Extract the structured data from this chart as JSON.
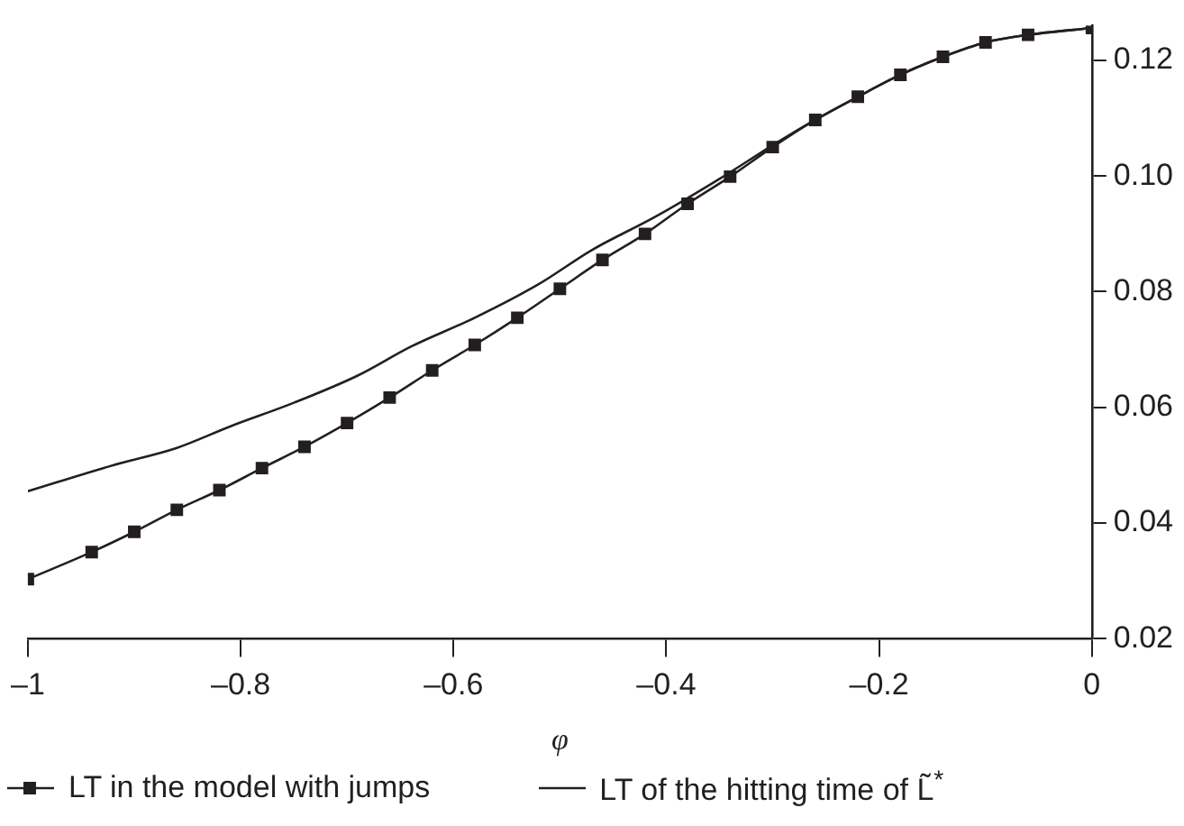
{
  "chart_data": {
    "type": "line",
    "xlabel": "φ",
    "xlim": [
      -1,
      0
    ],
    "ylim": [
      0.02,
      0.126
    ],
    "xticks": [
      {
        "value": -1,
        "label": "–1"
      },
      {
        "value": -0.8,
        "label": "–0.8"
      },
      {
        "value": -0.6,
        "label": "–0.6"
      },
      {
        "value": -0.4,
        "label": "–0.4"
      },
      {
        "value": -0.2,
        "label": "–0.2"
      },
      0
    ],
    "yticks": [
      {
        "value": 0.02,
        "label": "0.02"
      },
      {
        "value": 0.04,
        "label": "0.04"
      },
      {
        "value": 0.06,
        "label": "0.06"
      },
      {
        "value": 0.08,
        "label": "0.08"
      },
      {
        "value": 0.1,
        "label": "0.10"
      },
      {
        "value": 0.12,
        "label": "0.12"
      }
    ],
    "grid": false,
    "legend": "bottom",
    "line_style": "solid",
    "series": [
      {
        "name": "LT in the model with jumps",
        "color": "#231f20",
        "marker": "square",
        "x": [
          -1,
          -0.94,
          -0.9,
          -0.86,
          -0.82,
          -0.78,
          -0.74,
          -0.7,
          -0.66,
          -0.62,
          -0.58,
          -0.54,
          -0.5,
          -0.46,
          -0.42,
          -0.38,
          -0.34,
          -0.3,
          -0.26,
          -0.22,
          -0.18,
          -0.14,
          -0.1,
          -0.06,
          0
        ],
        "values": [
          0.0303,
          0.035,
          0.0385,
          0.0423,
          0.0457,
          0.0495,
          0.0532,
          0.0573,
          0.0617,
          0.0664,
          0.0708,
          0.0755,
          0.0805,
          0.0855,
          0.09,
          0.0952,
          0.0999,
          0.105,
          0.1097,
          0.1137,
          0.1175,
          0.1206,
          0.1231,
          0.1244,
          0.1256
        ]
      },
      {
        "name": "LT of the hitting time of L̃$^{*}$",
        "color": "#231f20",
        "marker": "none",
        "x": [
          -1,
          -0.92,
          -0.86,
          -0.81,
          -0.75,
          -0.69,
          -0.64,
          -0.58,
          -0.52,
          -0.47,
          -0.41,
          -0.35,
          -0.295,
          -0.26,
          -0.22,
          -0.18,
          -0.14,
          -0.1,
          -0.06,
          0
        ],
        "values": [
          0.0455,
          0.05,
          0.053,
          0.0567,
          0.0608,
          0.0655,
          0.0705,
          0.0755,
          0.0813,
          0.0872,
          0.093,
          0.0995,
          0.1059,
          0.1097,
          0.1137,
          0.1175,
          0.1206,
          0.1231,
          0.1244,
          0.1256
        ]
      }
    ]
  }
}
